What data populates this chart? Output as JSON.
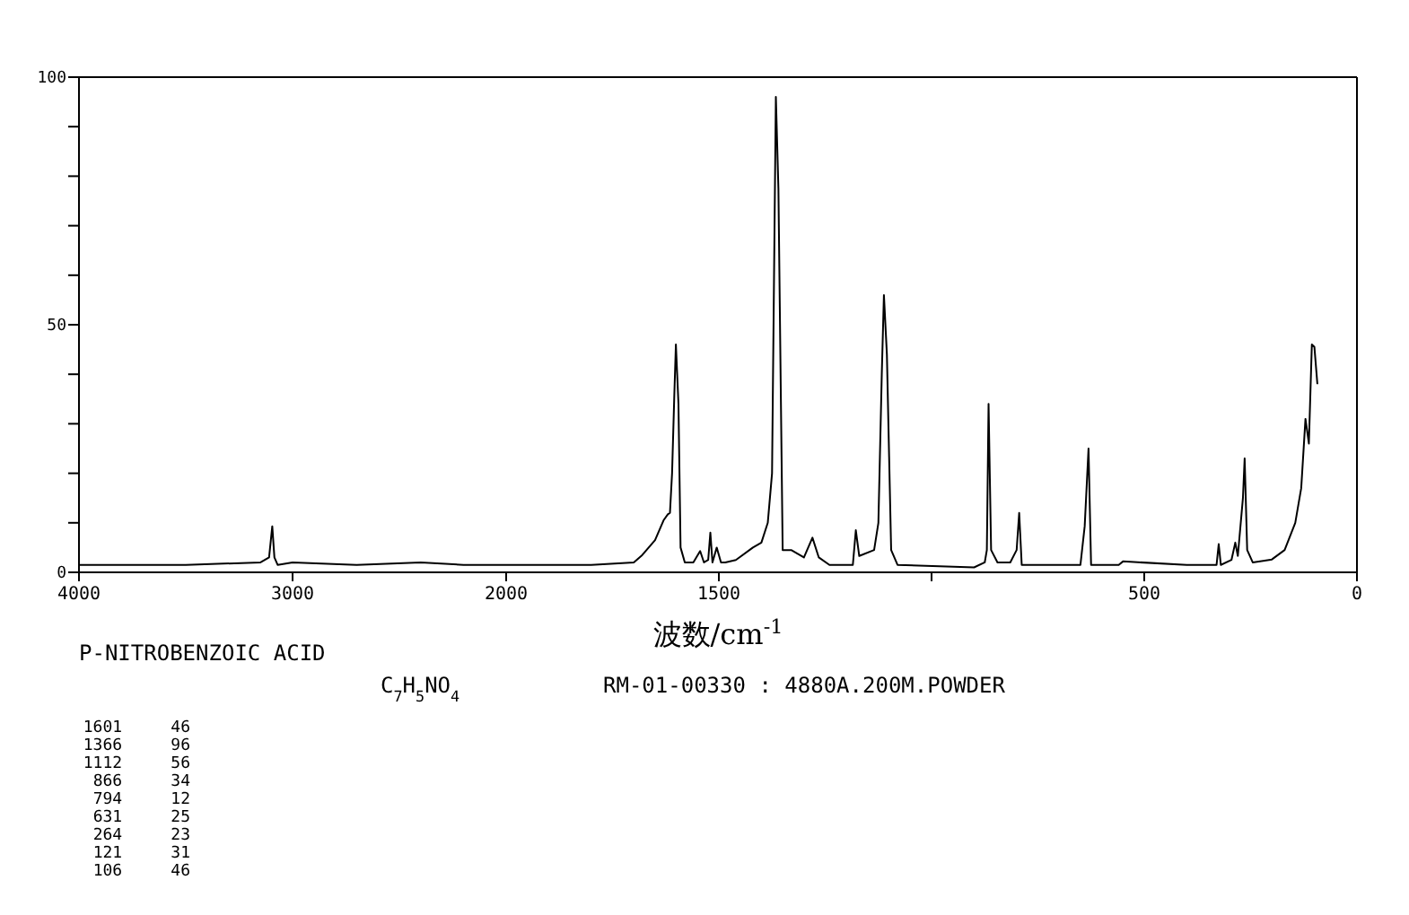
{
  "chart_data": [
    {
      "type": "line",
      "title": "P-NITROBENZOIC ACID",
      "xlabel": "波数/cm$^{-1}$",
      "xlim": [
        4000,
        2000
      ],
      "ylim": [
        0,
        100
      ],
      "xticks": [
        4000,
        3000,
        2000
      ],
      "yticks": [
        0,
        {
          "value": 10,
          "label": null
        },
        {
          "value": 20,
          "label": null
        },
        {
          "value": 30,
          "label": null
        },
        {
          "value": 40,
          "label": null
        },
        50,
        {
          "value": 60,
          "label": null
        },
        {
          "value": 70,
          "label": null
        },
        {
          "value": 80,
          "label": null
        },
        {
          "value": 90,
          "label": null
        },
        100
      ],
      "marker": "none",
      "line_style": "solid",
      "series": [
        {
          "color": "#000000",
          "x": [
            4000,
            3500,
            3150,
            3110,
            3095,
            3085,
            3070,
            3000,
            2700,
            2400,
            2200,
            2000
          ],
          "values": [
            1.5,
            1.5,
            2,
            3,
            9.3,
            3,
            1.5,
            2,
            1.5,
            2,
            1.5,
            1.5
          ]
        }
      ],
      "annotations": [
        "C$_{7}$H$_{5}$NO$_{4}$",
        "RM-01-00330 : 4880A.200M.POWDER",
        "1601     46",
        "1366     96",
        "1112     56",
        "866     34",
        "794     12",
        "631     25",
        "264     23",
        "121     31",
        "106     46"
      ]
    },
    {
      "type": "line",
      "xlim": [
        2000,
        0
      ],
      "ylim": [
        0,
        100
      ],
      "xticks": [
        {
          "value": 2000,
          "label": null
        },
        1500,
        {
          "value": 1000,
          "label": null
        },
        500,
        0
      ],
      "tick_labels": "x",
      "marker": "none",
      "line_style": "solid",
      "series": [
        {
          "color": "#000000",
          "x": [
            2000,
            1800,
            1700,
            1680,
            1650,
            1630,
            1620,
            1615,
            1610,
            1605,
            1601,
            1595,
            1590,
            1580,
            1560,
            1544,
            1535,
            1525,
            1520,
            1515,
            1505,
            1495,
            1485,
            1460,
            1420,
            1400,
            1385,
            1375,
            1366,
            1360,
            1350,
            1330,
            1300,
            1280,
            1265,
            1240,
            1185,
            1178,
            1170,
            1135,
            1125,
            1117,
            1112,
            1105,
            1095,
            1080,
            900,
            875,
            870,
            866,
            860,
            845,
            815,
            800,
            794,
            788,
            650,
            640,
            631,
            625,
            560,
            550,
            400,
            330,
            325,
            320,
            295,
            286,
            280,
            268,
            264,
            258,
            245,
            200,
            170,
            145,
            131,
            121,
            113,
            106,
            100,
            93
          ],
          "values": [
            1.5,
            1.5,
            2,
            3.5,
            6.5,
            10.5,
            11.7,
            12,
            20,
            35,
            46,
            34,
            5,
            2,
            2,
            4.3,
            2,
            2.5,
            8,
            2,
            5,
            2,
            2,
            2.5,
            5,
            6,
            10,
            20,
            96,
            77.5,
            4.5,
            4.5,
            3,
            7,
            3,
            1.5,
            1.5,
            8.5,
            3.3,
            4.5,
            10,
            40,
            56,
            44,
            4.5,
            1.5,
            1,
            2,
            4.5,
            34,
            4.5,
            2,
            2,
            4.5,
            12,
            1.5,
            1.5,
            9.3,
            25,
            1.5,
            1.5,
            2.2,
            1.5,
            1.5,
            5.7,
            1.5,
            2.5,
            6,
            3.3,
            15,
            23,
            4.5,
            2,
            2.6,
            4.5,
            10,
            17,
            31,
            26,
            46,
            45.5,
            38
          ]
        }
      ]
    }
  ]
}
